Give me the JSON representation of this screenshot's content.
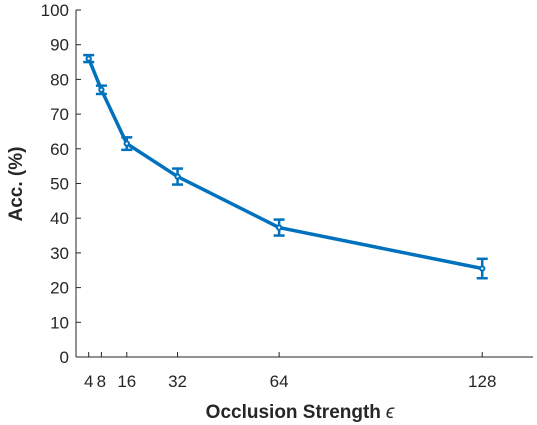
{
  "chart_data": {
    "type": "line",
    "xlabel": "Occlusion Strength",
    "xlabel_symbol": "ϵ",
    "ylabel": "Acc. (%)",
    "xlim": [
      0,
      144
    ],
    "ylim": [
      0,
      100
    ],
    "xticks": [
      4,
      8,
      16,
      32,
      64,
      128
    ],
    "xtick_labels": [
      "4",
      "8",
      "16",
      "32",
      "64",
      "128"
    ],
    "yticks": [
      0,
      10,
      20,
      30,
      40,
      50,
      60,
      70,
      80,
      90,
      100
    ],
    "grid": false,
    "color": "#0072BD",
    "series": [
      {
        "x": [
          4,
          8,
          16,
          32,
          64,
          128
        ],
        "y": [
          86,
          77,
          61.5,
          52,
          37.3,
          25.5
        ],
        "err": [
          1,
          1.2,
          1.8,
          2.3,
          2.3,
          2.8
        ]
      }
    ]
  }
}
